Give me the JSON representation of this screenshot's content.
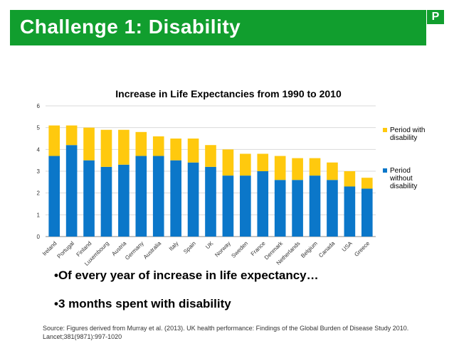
{
  "slide": {
    "title": "Challenge 1: Disability",
    "logo_text": "P",
    "bullets": [
      "•Of every year of increase in life expectancy…",
      "•3 months spent with disability"
    ],
    "source": "Source: Figures derived from Murray et al. (2013). UK health performance: Findings of the Global Burden of Disease Study 2010. Lancet;381(9871):997-1020",
    "accent_color": "#119e2e"
  },
  "chart_data": {
    "type": "bar",
    "stacked": true,
    "title": "Increase in Life Expectancies from 1990 to 2010",
    "categories": [
      "Ireland",
      "Portugal",
      "Finland",
      "Luxembourg",
      "Austria",
      "Germany",
      "Australia",
      "Italy",
      "Spain",
      "UK",
      "Norway",
      "Sweden",
      "France",
      "Denmark",
      "Netherlands",
      "Belgium",
      "Canada",
      "USA",
      "Greece"
    ],
    "ylim": [
      0,
      6
    ],
    "yticks": [
      0,
      1,
      2,
      3,
      4,
      5,
      6
    ],
    "grid": true,
    "legend_position": "right",
    "series": [
      {
        "name": "Period without disability",
        "color": "#0b77c9",
        "values": [
          3.7,
          4.2,
          3.5,
          3.2,
          3.3,
          3.7,
          3.7,
          3.5,
          3.4,
          3.2,
          2.8,
          2.8,
          3.0,
          2.6,
          2.6,
          2.8,
          2.6,
          2.3,
          2.2
        ]
      },
      {
        "name": "Period with disability",
        "color": "#ffc90e",
        "values": [
          1.4,
          0.9,
          1.5,
          1.7,
          1.6,
          1.1,
          0.9,
          1.0,
          1.1,
          1.0,
          1.2,
          1.0,
          0.8,
          1.1,
          1.0,
          0.8,
          0.8,
          0.7,
          0.5
        ]
      }
    ]
  }
}
